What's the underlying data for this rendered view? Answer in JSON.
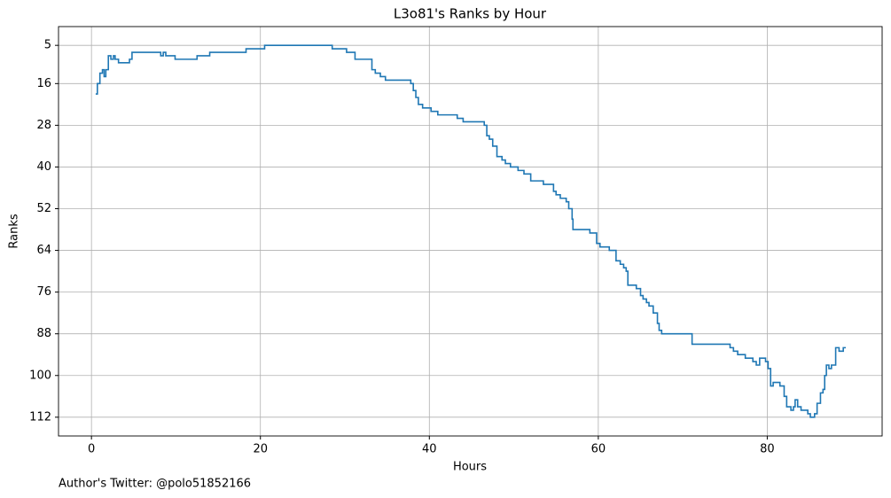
{
  "chart_data": {
    "type": "line",
    "drawstyle": "steps-post",
    "title": "L3o81's Ranks by Hour",
    "x_label": "Hours",
    "y_label": "Ranks",
    "footnote": "Author's Twitter: @polo51852166",
    "x": [
      0.5,
      0.7,
      1.0,
      1.3,
      1.5,
      1.7,
      2.0,
      2.3,
      2.6,
      2.8,
      3.2,
      4.5,
      4.8,
      5.3,
      8.2,
      8.5,
      8.8,
      9.9,
      12.5,
      14,
      18.3,
      20.5,
      28.5,
      30.2,
      31.2,
      33.2,
      33.6,
      34.2,
      34.8,
      37.8,
      38.1,
      38.4,
      38.7,
      39.2,
      40.2,
      41,
      43.3,
      44,
      46.5,
      46.8,
      47.1,
      47.5,
      48,
      48.6,
      49,
      49.6,
      50.5,
      51.2,
      52,
      53.5,
      54.7,
      55,
      55.5,
      56.2,
      56.5,
      56.9,
      57,
      59,
      59.8,
      60.2,
      61.3,
      62.1,
      62.6,
      63,
      63.3,
      63.5,
      64.5,
      65,
      65.3,
      65.7,
      66,
      66.5,
      67,
      67.2,
      67.5,
      71.1,
      75.6,
      76,
      76.5,
      77.4,
      78.3,
      78.7,
      79.1,
      79.8,
      80.1,
      80.4,
      80.7,
      81.5,
      82,
      82.3,
      82.8,
      83.1,
      83.3,
      83.6,
      84,
      84.8,
      85.1,
      85.6,
      85.9,
      86.3,
      86.6,
      86.8,
      87,
      87.3,
      87.6,
      88.1,
      88.5,
      89,
      89.3
    ],
    "series": [
      {
        "name": "Ranks",
        "color": "#1f77b4",
        "values": [
          19,
          16,
          13,
          12,
          14,
          12,
          8,
          9,
          8,
          9,
          10,
          9,
          7,
          7,
          8,
          7,
          8,
          9,
          8,
          7,
          6,
          5,
          6,
          7,
          9,
          12,
          13,
          14,
          15,
          16,
          18,
          20,
          22,
          23,
          24,
          25,
          26,
          27,
          28,
          31,
          32,
          34,
          37,
          38,
          39,
          40,
          41,
          42,
          44,
          45,
          47,
          48,
          49,
          50,
          52,
          55,
          58,
          59,
          62,
          63,
          64,
          67,
          68,
          69,
          70,
          74,
          75,
          77,
          78,
          79,
          80,
          82,
          85,
          87,
          88,
          91,
          92,
          93,
          94,
          95,
          96,
          97,
          95,
          96,
          98,
          103,
          102,
          103,
          106,
          109,
          110,
          109,
          107,
          109,
          110,
          111,
          112,
          111,
          108,
          105,
          104,
          100,
          97,
          98,
          97,
          92,
          93,
          92,
          92
        ]
      }
    ],
    "xlim": [
      -3.9,
      93.6
    ],
    "ylim": [
      117.4,
      -0.4
    ],
    "xticks": [
      0,
      20,
      40,
      60,
      80
    ],
    "yticks": [
      5,
      16,
      28,
      40,
      52,
      64,
      76,
      88,
      100,
      112
    ],
    "grid": true
  }
}
